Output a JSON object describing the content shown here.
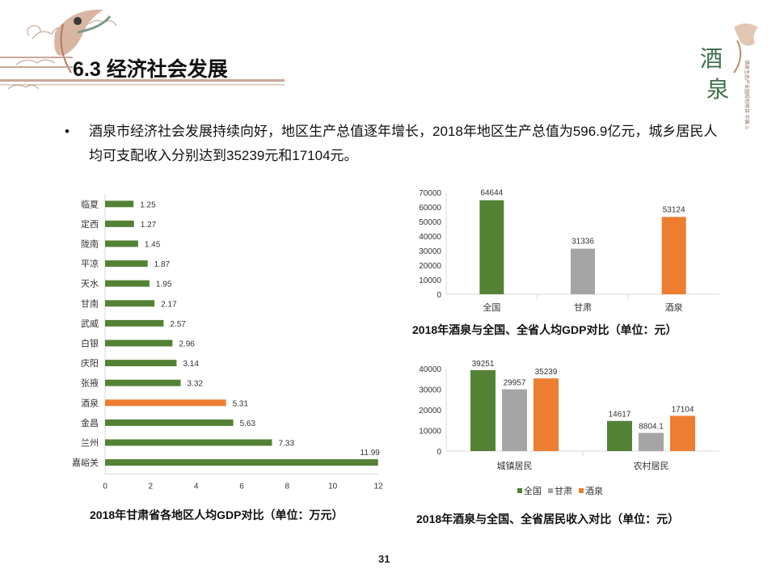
{
  "header": {
    "title": "6.3 经济社会发展"
  },
  "logo": {
    "glyphs": [
      "酒",
      "泉"
    ],
    "side_text": "酒泉生态产业园规划项目 中国·以泉州（泉里）",
    "icon": "jiuquan-logo-icon"
  },
  "colors": {
    "green": "#548235",
    "gray": "#a5a5a5",
    "orange": "#ed7d31",
    "title_line": "#c9a89a"
  },
  "bullet": {
    "marker": "•",
    "text": "酒泉市经济社会发展持续向好，地区生产总值逐年增长，2018年地区生产总值为596.9亿元，城乡居民人均可支配收入分别达到35239元和17104元。"
  },
  "chart_data": [
    {
      "type": "bar",
      "orientation": "horizontal",
      "categories": [
        "临夏",
        "定西",
        "陇南",
        "平凉",
        "天水",
        "甘南",
        "武威",
        "白银",
        "庆阳",
        "张掖",
        "酒泉",
        "金昌",
        "兰州",
        "嘉峪关"
      ],
      "values": [
        1.25,
        1.27,
        1.45,
        1.87,
        1.95,
        2.17,
        2.57,
        2.96,
        3.14,
        3.32,
        5.31,
        5.63,
        7.33,
        11.99
      ],
      "value_labels": [
        "1.25",
        "1.27",
        "1.45",
        "1.87",
        "1.95",
        "2.17",
        "2.57",
        "2.96",
        "3.14",
        "3.32",
        "5.31",
        "5.63",
        "7.33",
        "11.99"
      ],
      "highlight": "酒泉",
      "xlim": [
        0,
        12
      ],
      "xticks": [
        "0",
        "2",
        "4",
        "6",
        "8",
        "10",
        "12"
      ],
      "title": "2018年甘肃省各地区人均GDP对比（单位：万元）"
    },
    {
      "type": "bar",
      "categories": [
        "全国",
        "甘肃",
        "酒泉"
      ],
      "values": [
        64644,
        31336,
        53124
      ],
      "value_labels": [
        "64644",
        "31336",
        "53124"
      ],
      "ylim": [
        0,
        70000
      ],
      "yticks": [
        "0",
        "10000",
        "20000",
        "30000",
        "40000",
        "50000",
        "60000",
        "70000"
      ],
      "title": "2018年酒泉与全国、全省人均GDP对比（单位：元）"
    },
    {
      "type": "bar",
      "categories": [
        "城镇居民",
        "农村居民"
      ],
      "series": [
        {
          "name": "全国",
          "values": [
            39251,
            14617
          ],
          "labels": [
            "39251",
            "14617"
          ]
        },
        {
          "name": "甘肃",
          "values": [
            29957,
            8804.1
          ],
          "labels": [
            "29957",
            "8804.1"
          ]
        },
        {
          "name": "酒泉",
          "values": [
            35239,
            17104
          ],
          "labels": [
            "35239",
            "17104"
          ]
        }
      ],
      "ylim": [
        0,
        40000
      ],
      "yticks": [
        "0",
        "10000",
        "20000",
        "30000",
        "40000"
      ],
      "legend": "bottom",
      "title": "2018年酒泉与全国、全省居民收入对比（单位：元）"
    }
  ],
  "page_number": "31"
}
